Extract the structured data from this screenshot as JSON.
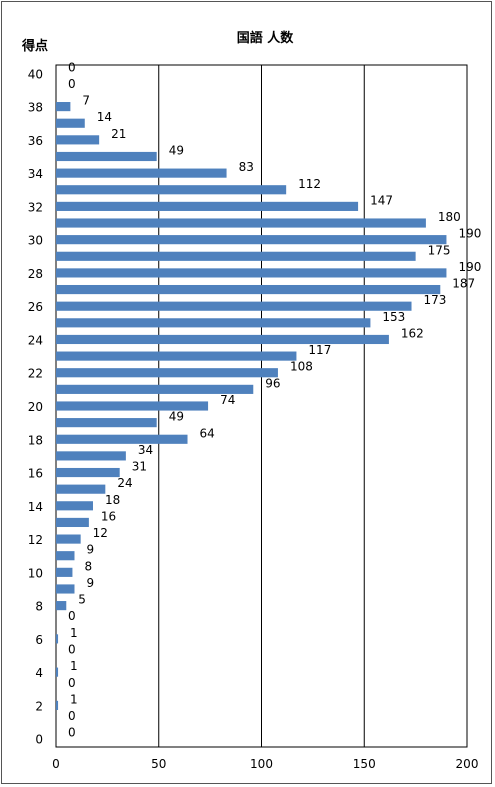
{
  "chart_data": {
    "type": "bar",
    "orientation": "horizontal",
    "title": "国語 人数",
    "ylabel": "得点",
    "xlabel": "",
    "xlim": [
      0,
      200
    ],
    "x_ticks": [
      "0",
      "50",
      "100",
      "150",
      "200"
    ],
    "y_tick_labels": [
      "0",
      "2",
      "4",
      "6",
      "8",
      "10",
      "12",
      "14",
      "16",
      "18",
      "20",
      "22",
      "24",
      "26",
      "28",
      "30",
      "32",
      "34",
      "36",
      "38",
      "40"
    ],
    "categories": [
      0,
      1,
      2,
      3,
      4,
      5,
      6,
      7,
      8,
      9,
      10,
      11,
      12,
      13,
      14,
      15,
      16,
      17,
      18,
      19,
      20,
      21,
      22,
      23,
      24,
      25,
      26,
      27,
      28,
      29,
      30,
      31,
      32,
      33,
      34,
      35,
      36,
      37,
      38,
      39,
      40
    ],
    "values": [
      0,
      0,
      1,
      0,
      1,
      0,
      1,
      0,
      5,
      9,
      8,
      9,
      12,
      16,
      18,
      24,
      31,
      34,
      64,
      49,
      74,
      96,
      108,
      117,
      162,
      153,
      173,
      187,
      190,
      175,
      190,
      180,
      147,
      112,
      83,
      49,
      21,
      14,
      7,
      0,
      0
    ],
    "grid": true,
    "bar_color": "#4f81bd",
    "legend": "none"
  }
}
